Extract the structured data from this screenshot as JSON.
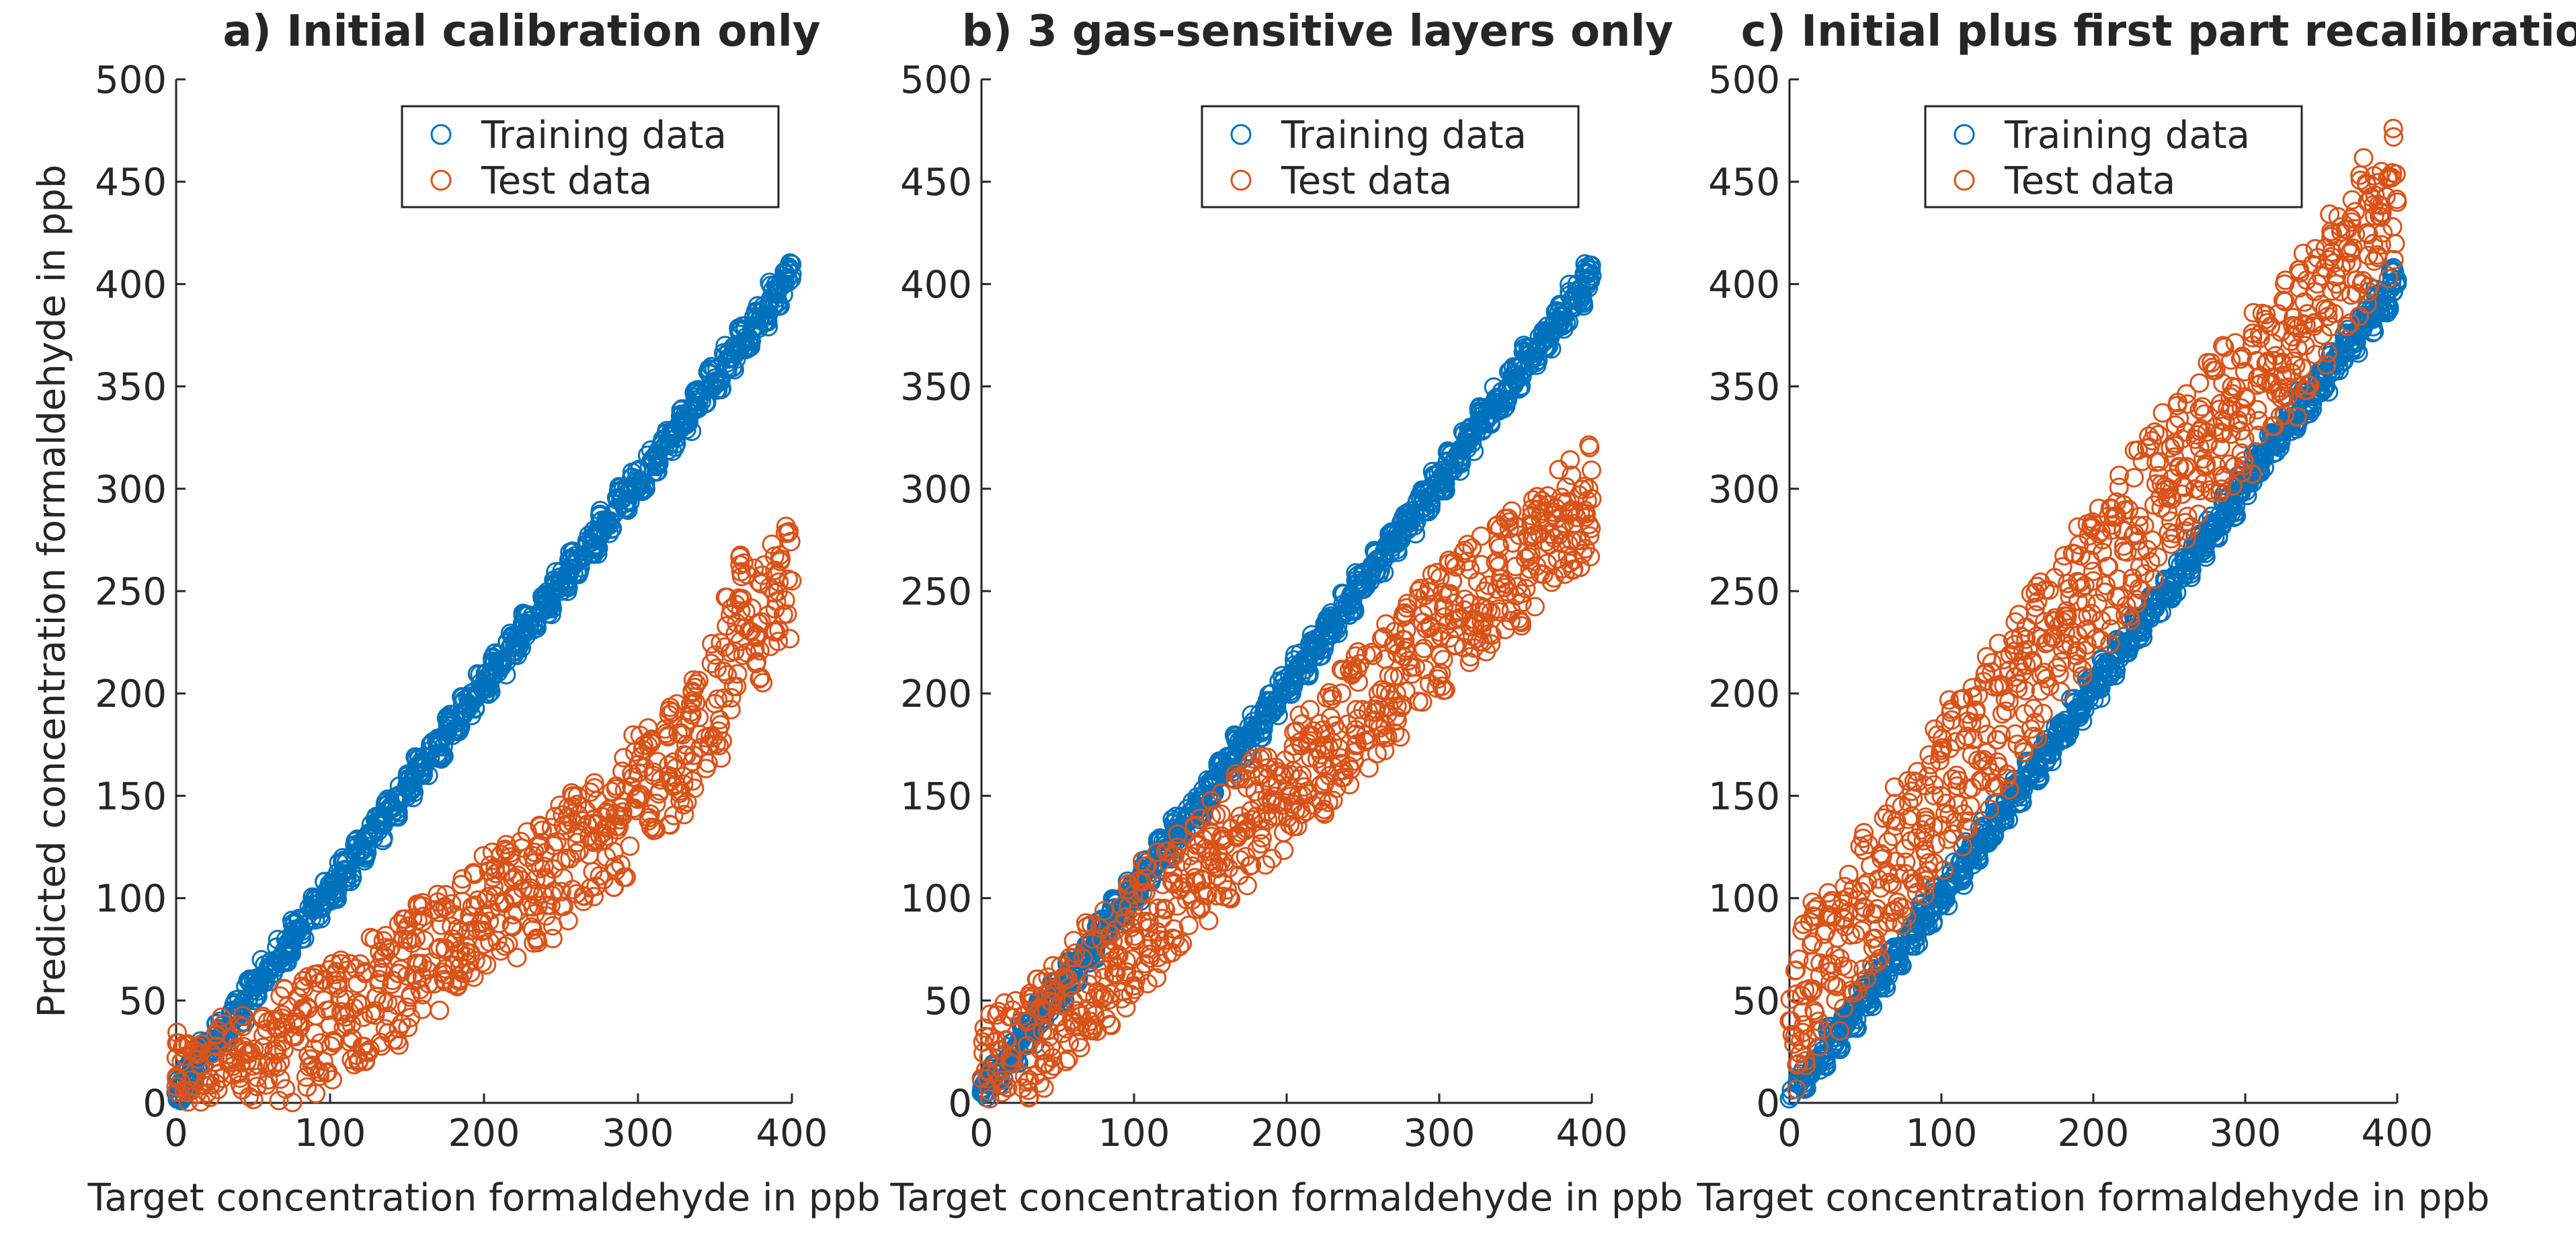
{
  "chart_data": [
    {
      "type": "scatter",
      "title": "a) Initial calibration only",
      "xlabel": "Target concentration formaldehyde in ppb",
      "ylabel": "Predicted concentration formaldehyde in ppb",
      "xlim": [
        0,
        400
      ],
      "ylim": [
        0,
        500
      ],
      "xticks": [
        "0",
        "100",
        "200",
        "300",
        "400"
      ],
      "yticks": [
        "0",
        "50",
        "100",
        "150",
        "200",
        "250",
        "300",
        "350",
        "400",
        "450",
        "500"
      ],
      "legend_position": "top-right",
      "series": [
        {
          "name": "Training data",
          "color": "#0072BD",
          "marker": "circle-open",
          "x": [
            0,
            10,
            20,
            30,
            40,
            50,
            60,
            70,
            80,
            90,
            100,
            110,
            120,
            130,
            140,
            150,
            160,
            170,
            180,
            190,
            200,
            210,
            220,
            230,
            240,
            250,
            260,
            270,
            280,
            290,
            300,
            310,
            320,
            330,
            340,
            350,
            360,
            370,
            380,
            390,
            400
          ],
          "y": [
            5,
            15,
            25,
            34,
            45,
            55,
            64,
            74,
            85,
            95,
            104,
            114,
            124,
            134,
            145,
            155,
            164,
            174,
            185,
            195,
            205,
            214,
            224,
            234,
            244,
            255,
            264,
            274,
            284,
            295,
            304,
            314,
            324,
            334,
            344,
            354,
            364,
            374,
            384,
            395,
            405
          ]
        },
        {
          "name": "Test data",
          "color": "#D95319",
          "marker": "circle-open",
          "x": [
            0,
            10,
            20,
            30,
            40,
            50,
            60,
            70,
            80,
            90,
            100,
            110,
            120,
            130,
            140,
            150,
            160,
            170,
            180,
            190,
            200,
            210,
            220,
            230,
            240,
            250,
            260,
            270,
            280,
            290,
            300,
            310,
            320,
            330,
            340,
            350,
            360,
            370,
            380,
            390,
            400
          ],
          "y": [
            8,
            6,
            10,
            12,
            15,
            18,
            20,
            26,
            30,
            34,
            38,
            42,
            48,
            52,
            58,
            62,
            68,
            75,
            80,
            88,
            92,
            98,
            100,
            105,
            110,
            118,
            122,
            128,
            135,
            140,
            150,
            160,
            165,
            170,
            180,
            195,
            220,
            240,
            235,
            245,
            255
          ]
        }
      ]
    },
    {
      "type": "scatter",
      "title": "b) 3 gas-sensitive layers only",
      "xlabel": "Target concentration formaldehyde in ppb",
      "ylabel": "",
      "xlim": [
        0,
        400
      ],
      "ylim": [
        0,
        500
      ],
      "xticks": [
        "0",
        "100",
        "200",
        "300",
        "400"
      ],
      "yticks": [
        "0",
        "50",
        "100",
        "150",
        "200",
        "250",
        "300",
        "350",
        "400",
        "450",
        "500"
      ],
      "legend_position": "top-right",
      "series": [
        {
          "name": "Training data",
          "color": "#0072BD",
          "marker": "circle-open",
          "x": [
            0,
            10,
            20,
            30,
            40,
            50,
            60,
            70,
            80,
            90,
            100,
            110,
            120,
            130,
            140,
            150,
            160,
            170,
            180,
            190,
            200,
            210,
            220,
            230,
            240,
            250,
            260,
            270,
            280,
            290,
            300,
            310,
            320,
            330,
            340,
            350,
            360,
            370,
            380,
            390,
            400
          ],
          "y": [
            5,
            14,
            24,
            34,
            44,
            54,
            64,
            74,
            84,
            94,
            104,
            114,
            124,
            134,
            144,
            154,
            164,
            174,
            184,
            194,
            204,
            214,
            224,
            234,
            244,
            254,
            264,
            274,
            284,
            294,
            304,
            314,
            324,
            334,
            344,
            354,
            364,
            374,
            384,
            394,
            404
          ]
        },
        {
          "name": "Test data",
          "color": "#D95319",
          "marker": "circle-open",
          "x": [
            0,
            10,
            20,
            30,
            40,
            50,
            60,
            70,
            80,
            90,
            100,
            110,
            120,
            130,
            140,
            150,
            160,
            170,
            180,
            190,
            200,
            210,
            220,
            230,
            240,
            250,
            260,
            270,
            280,
            290,
            300,
            310,
            320,
            330,
            340,
            350,
            360,
            370,
            380,
            390,
            400
          ],
          "y": [
            12,
            15,
            22,
            28,
            35,
            42,
            50,
            58,
            65,
            72,
            80,
            88,
            95,
            104,
            110,
            118,
            126,
            132,
            140,
            146,
            152,
            160,
            168,
            176,
            185,
            192,
            200,
            208,
            216,
            222,
            230,
            236,
            244,
            250,
            256,
            262,
            268,
            274,
            280,
            286,
            295
          ]
        }
      ]
    },
    {
      "type": "scatter",
      "title": "c) Initial plus first part recalibration",
      "xlabel": "Target concentration formaldehyde in ppb",
      "ylabel": "",
      "xlim": [
        0,
        400
      ],
      "ylim": [
        0,
        500
      ],
      "xticks": [
        "0",
        "100",
        "200",
        "300",
        "400"
      ],
      "yticks": [
        "0",
        "50",
        "100",
        "150",
        "200",
        "250",
        "300",
        "350",
        "400",
        "450",
        "500"
      ],
      "legend_position": "top-center",
      "series": [
        {
          "name": "Training data",
          "color": "#0072BD",
          "marker": "circle-open",
          "x": [
            0,
            10,
            20,
            30,
            40,
            50,
            60,
            70,
            80,
            90,
            100,
            110,
            120,
            130,
            140,
            150,
            160,
            170,
            180,
            190,
            200,
            210,
            220,
            230,
            240,
            250,
            260,
            270,
            280,
            290,
            300,
            310,
            320,
            330,
            340,
            350,
            360,
            370,
            380,
            390,
            400
          ],
          "y": [
            2,
            12,
            22,
            32,
            42,
            52,
            62,
            72,
            82,
            92,
            102,
            112,
            122,
            132,
            142,
            152,
            162,
            172,
            182,
            192,
            202,
            212,
            222,
            232,
            242,
            252,
            262,
            272,
            282,
            292,
            302,
            312,
            322,
            332,
            342,
            352,
            362,
            372,
            382,
            392,
            402
          ]
        },
        {
          "name": "Test data",
          "color": "#D95319",
          "marker": "circle-open",
          "x": [
            0,
            10,
            20,
            30,
            40,
            50,
            60,
            70,
            80,
            90,
            100,
            110,
            120,
            130,
            140,
            150,
            160,
            170,
            180,
            190,
            200,
            210,
            220,
            230,
            240,
            250,
            260,
            270,
            280,
            290,
            300,
            310,
            320,
            330,
            340,
            350,
            360,
            370,
            380,
            390,
            400
          ],
          "y": [
            40,
            55,
            62,
            72,
            82,
            95,
            105,
            118,
            128,
            138,
            150,
            160,
            170,
            180,
            190,
            205,
            215,
            225,
            235,
            245,
            255,
            262,
            272,
            282,
            292,
            300,
            310,
            320,
            330,
            338,
            345,
            355,
            365,
            372,
            380,
            390,
            400,
            410,
            425,
            435,
            440
          ]
        }
      ]
    }
  ]
}
